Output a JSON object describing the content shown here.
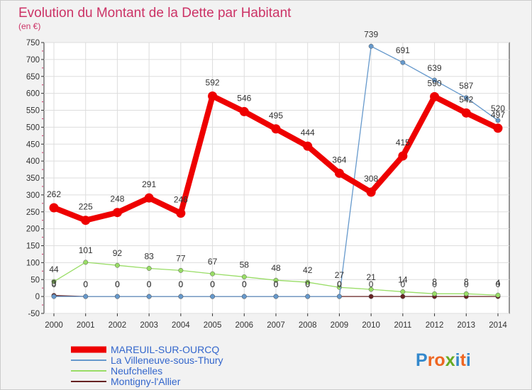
{
  "chart_data": {
    "type": "line",
    "title": "Evolution du Montant de la Dette par Habitant",
    "subtitle": "(en €)",
    "xlabel": "",
    "ylabel": "",
    "ylim": [
      -50,
      750
    ],
    "yticks": [
      -50,
      0,
      50,
      100,
      150,
      200,
      250,
      300,
      350,
      400,
      450,
      500,
      550,
      600,
      650,
      700,
      750
    ],
    "ytick_labels": [
      "-50",
      "0",
      "50",
      "100",
      "150",
      "200",
      "250",
      "300",
      "350",
      "400",
      "450",
      "500",
      "550",
      "600",
      "650",
      "700",
      "750"
    ],
    "categories": [
      "2000",
      "2001",
      "2002",
      "2003",
      "2004",
      "2005",
      "2006",
      "2007",
      "2008",
      "2009",
      "2010",
      "2011",
      "2012",
      "2013",
      "2014"
    ],
    "grid": true,
    "legend_position": "bottom-left",
    "series": [
      {
        "name": "MAREUIL-SUR-OURCQ",
        "color": "#ee0000",
        "values": [
          262,
          225,
          248,
          291,
          246,
          592,
          546,
          495,
          444,
          364,
          308,
          415,
          590,
          542,
          497
        ],
        "labels": [
          "262",
          "225",
          "248",
          "291",
          "246",
          "592",
          "546",
          "495",
          "444",
          "364",
          "308",
          "415",
          "590",
          "542",
          "497"
        ]
      },
      {
        "name": "La Villeneuve-sous-Thury",
        "color": "#6699cc",
        "values": [
          0,
          0,
          0,
          0,
          0,
          0,
          0,
          0,
          0,
          0,
          739,
          691,
          639,
          587,
          520
        ],
        "labels": [
          "0",
          "0",
          "0",
          "0",
          "0",
          "0",
          "0",
          "0",
          "0",
          "0",
          "739",
          "691",
          "639",
          "587",
          "520"
        ]
      },
      {
        "name": "Neufchelles",
        "color": "#99dd66",
        "values": [
          44,
          101,
          92,
          83,
          77,
          67,
          58,
          48,
          42,
          27,
          21,
          14,
          8,
          8,
          4
        ],
        "labels": [
          "44",
          "101",
          "92",
          "83",
          "77",
          "67",
          "58",
          "48",
          "42",
          "27",
          "21",
          "14",
          "8",
          "8",
          "4"
        ]
      },
      {
        "name": "Montigny-l'Allier",
        "color": "#662222",
        "values": [
          3,
          0,
          0,
          0,
          0,
          0,
          0,
          0,
          0,
          0,
          0,
          0,
          0,
          0,
          0
        ],
        "labels": [
          "3",
          "0",
          "0",
          "0",
          "0",
          "0",
          "0",
          "0",
          "0",
          "0",
          "0",
          "0",
          "0",
          "0",
          "0"
        ]
      }
    ]
  },
  "branding": {
    "logo_text": "Proxiti",
    "logo_letters": [
      "P",
      "r",
      "o",
      "x",
      "i",
      "t",
      "i"
    ],
    "logo_colors": [
      "#3388cc",
      "#ee6622",
      "#ee6622",
      "#66aa22",
      "#3388cc",
      "#ee6622",
      "#3388cc"
    ]
  },
  "colors": {
    "title": "#cc3366",
    "axis": "#333333",
    "grid": "#dddddd",
    "plot_bg": "#ffffff",
    "page_bg": "#f2f2f2"
  }
}
